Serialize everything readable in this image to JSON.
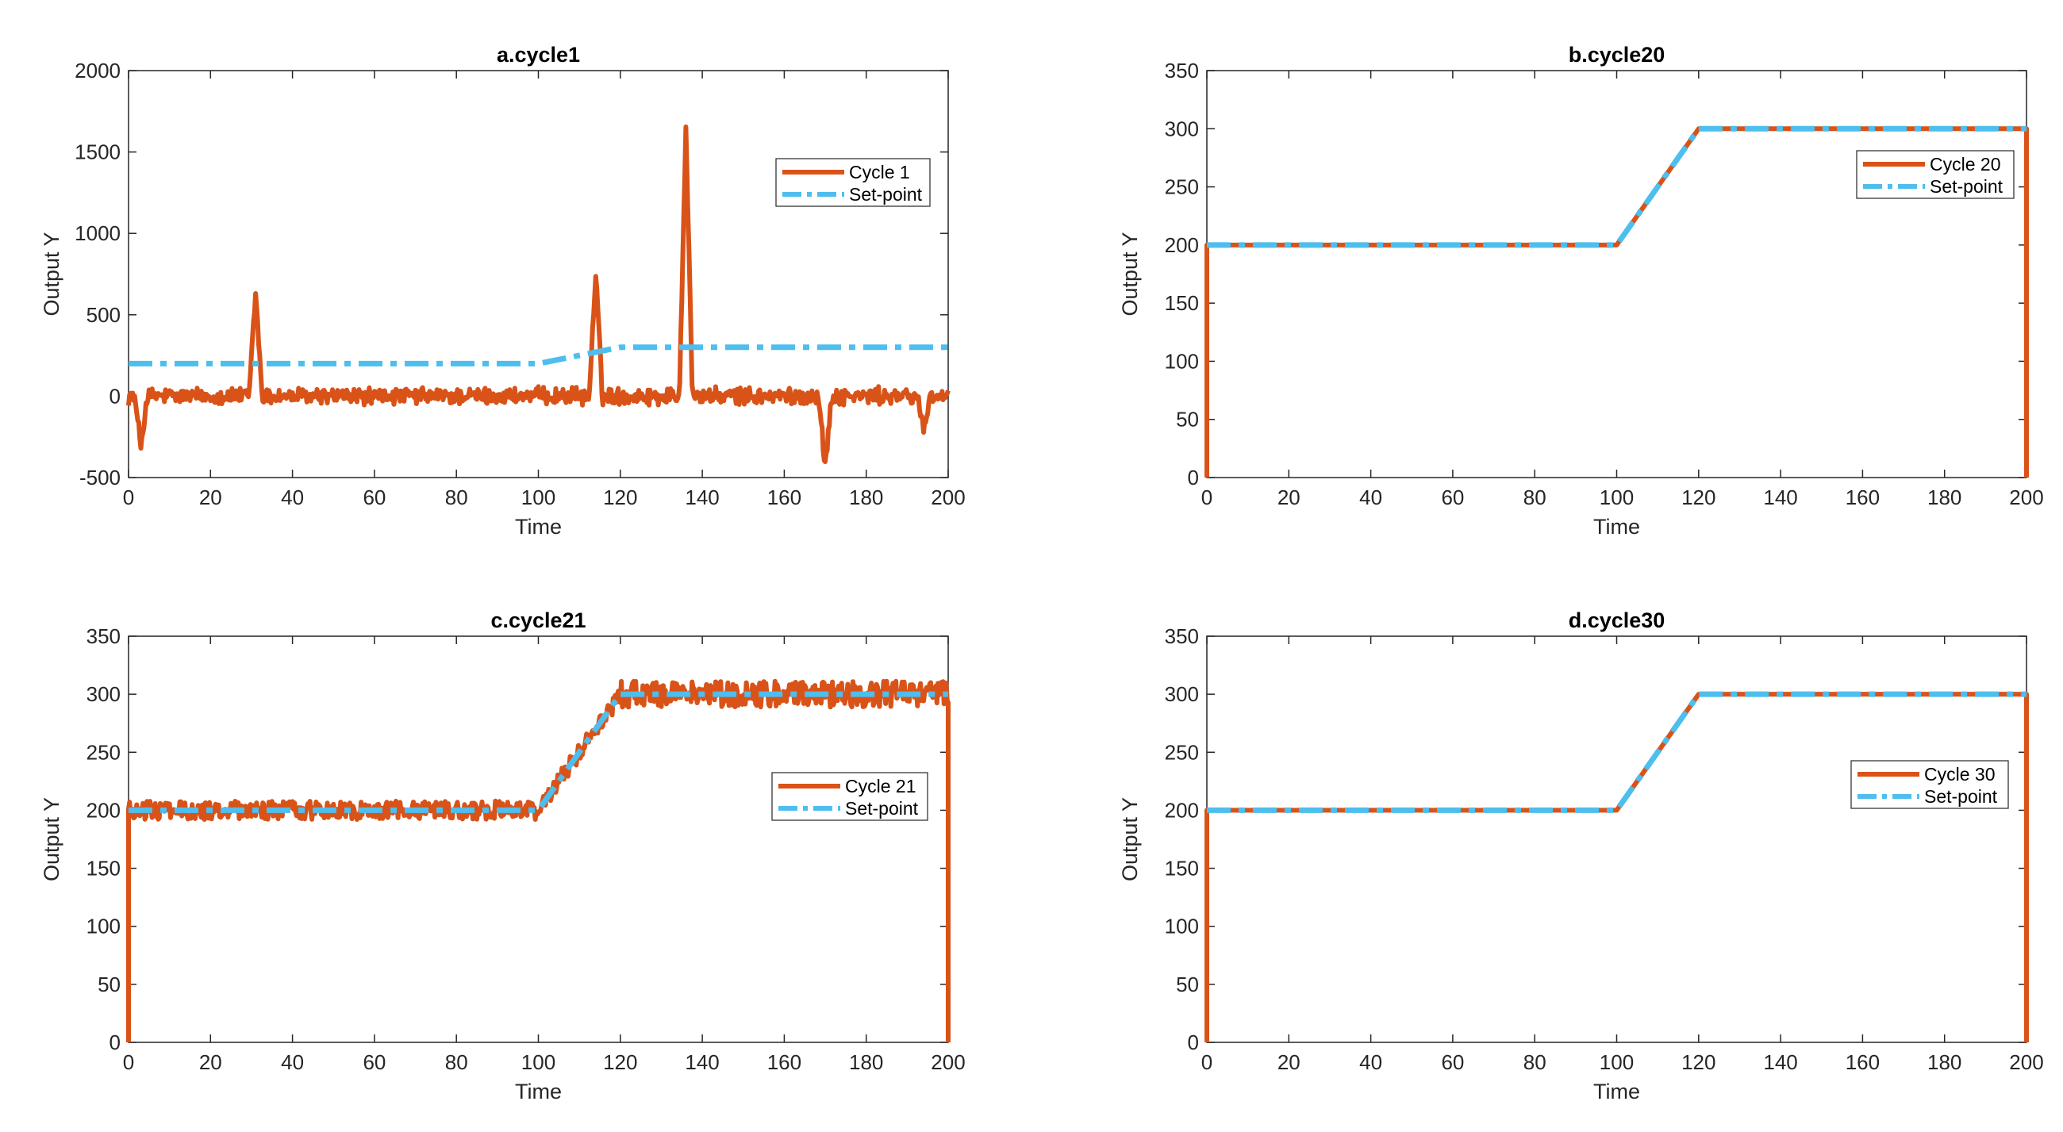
{
  "colors": {
    "cycle": "#D95319",
    "setpoint": "#4DBEEE",
    "axis": "#262626"
  },
  "chart_data": [
    {
      "type": "line",
      "title": "a.cycle1",
      "xlabel": "Time",
      "ylabel": "Output Y",
      "xlim": [
        0,
        200
      ],
      "ylim": [
        -500,
        2000
      ],
      "xticks": [
        "0",
        "20",
        "40",
        "60",
        "80",
        "100",
        "120",
        "140",
        "160",
        "180",
        "200"
      ],
      "yticks": [
        "-500",
        "0",
        "500",
        "1000",
        "1500",
        "2000"
      ],
      "legend": {
        "location": "top-right",
        "entries": [
          "Cycle 1",
          "Set-point"
        ]
      },
      "series": [
        {
          "name": "Cycle 1",
          "style": "solid",
          "model": "noise",
          "noise_amp": 40,
          "spikes": [
            [
              31,
              640
            ],
            [
              114,
              750
            ],
            [
              136,
              1670
            ],
            [
              170,
              -440
            ],
            [
              3,
              -300
            ],
            [
              194,
              -200
            ]
          ]
        },
        {
          "name": "Set-point",
          "style": "dashdot",
          "x": [
            0,
            100,
            120,
            200
          ],
          "y": [
            200,
            200,
            300,
            300
          ]
        }
      ]
    },
    {
      "type": "line",
      "title": "b.cycle20",
      "xlabel": "Time",
      "ylabel": "Output Y",
      "xlim": [
        0,
        200
      ],
      "ylim": [
        0,
        350
      ],
      "xticks": [
        "0",
        "20",
        "40",
        "60",
        "80",
        "100",
        "120",
        "140",
        "160",
        "180",
        "200"
      ],
      "yticks": [
        "0",
        "50",
        "100",
        "150",
        "200",
        "250",
        "300",
        "350"
      ],
      "legend": {
        "location": "top-right",
        "entries": [
          "Cycle 20",
          "Set-point"
        ]
      },
      "series": [
        {
          "name": "Cycle 20",
          "style": "solid",
          "x": [
            0,
            0,
            100,
            120,
            200,
            200
          ],
          "y": [
            0,
            200,
            200,
            300,
            300,
            0
          ]
        },
        {
          "name": "Set-point",
          "style": "dashdot",
          "x": [
            0,
            100,
            120,
            200
          ],
          "y": [
            200,
            200,
            300,
            300
          ]
        }
      ]
    },
    {
      "type": "line",
      "title": "c.cycle21",
      "xlabel": "Time",
      "ylabel": "Output Y",
      "xlim": [
        0,
        200
      ],
      "ylim": [
        0,
        350
      ],
      "xticks": [
        "0",
        "20",
        "40",
        "60",
        "80",
        "100",
        "120",
        "140",
        "160",
        "180",
        "200"
      ],
      "yticks": [
        "0",
        "50",
        "100",
        "150",
        "200",
        "250",
        "300",
        "350"
      ],
      "legend": {
        "location": "right",
        "entries": [
          "Cycle 21",
          "Set-point"
        ]
      },
      "series": [
        {
          "name": "Cycle 21",
          "style": "solid",
          "model": "noisy-track",
          "noise_amp": 8,
          "x": [
            0,
            0,
            100,
            120,
            200,
            200
          ],
          "y": [
            0,
            200,
            200,
            300,
            300,
            0
          ]
        },
        {
          "name": "Set-point",
          "style": "dashdot",
          "x": [
            0,
            100,
            120,
            200
          ],
          "y": [
            200,
            200,
            300,
            300
          ]
        }
      ]
    },
    {
      "type": "line",
      "title": "d.cycle30",
      "xlabel": "Time",
      "ylabel": "Output Y",
      "xlim": [
        0,
        200
      ],
      "ylim": [
        0,
        350
      ],
      "xticks": [
        "0",
        "20",
        "40",
        "60",
        "80",
        "100",
        "120",
        "140",
        "160",
        "180",
        "200"
      ],
      "yticks": [
        "0",
        "50",
        "100",
        "150",
        "200",
        "250",
        "300",
        "350"
      ],
      "legend": {
        "location": "right",
        "entries": [
          "Cycle 30",
          "Set-point"
        ]
      },
      "series": [
        {
          "name": "Cycle 30",
          "style": "solid",
          "x": [
            0,
            0,
            100,
            120,
            200,
            200
          ],
          "y": [
            0,
            200,
            200,
            300,
            300,
            0
          ]
        },
        {
          "name": "Set-point",
          "style": "dashdot",
          "x": [
            0,
            100,
            120,
            200
          ],
          "y": [
            200,
            200,
            300,
            300
          ]
        }
      ]
    }
  ]
}
